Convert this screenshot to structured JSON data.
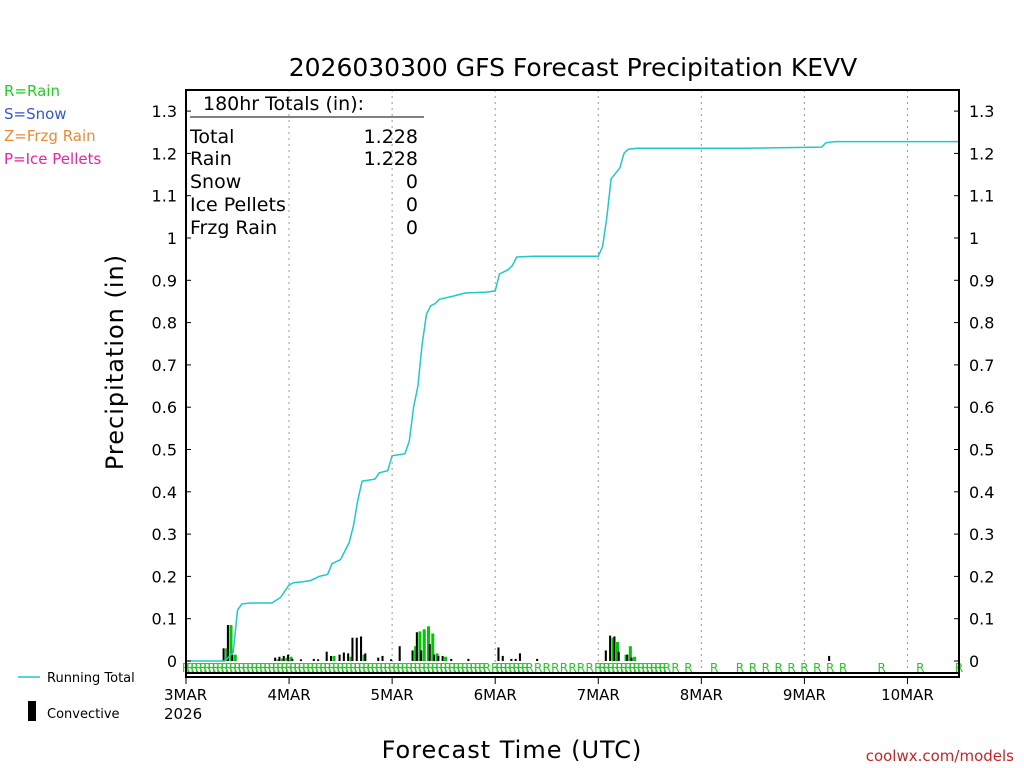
{
  "chart_data": {
    "type": "line",
    "title": "2026030300 GFS Forecast Precipitation KEVV",
    "xlabel": "Forecast Time (UTC)",
    "ylabel": "Precipitation (in)",
    "ylim": [
      0,
      1.35
    ],
    "xlim_hours": [
      0,
      180
    ],
    "y_ticks": [
      0,
      0.1,
      0.2,
      0.3,
      0.4,
      0.5,
      0.6,
      0.7,
      0.8,
      0.9,
      1,
      1.1,
      1.2,
      1.3
    ],
    "y_tick_labels": [
      "0",
      "0.1",
      "0.2",
      "0.3",
      "0.4",
      "0.5",
      "0.6",
      "0.7",
      "0.8",
      "0.9",
      "1",
      "1.1",
      "1.2",
      "1.3"
    ],
    "x_ticks": [
      {
        "hour": 0,
        "label": "3MAR",
        "sublabel": "2026"
      },
      {
        "hour": 24,
        "label": "4MAR"
      },
      {
        "hour": 48,
        "label": "5MAR"
      },
      {
        "hour": 72,
        "label": "6MAR"
      },
      {
        "hour": 96,
        "label": "7MAR"
      },
      {
        "hour": 120,
        "label": "8MAR"
      },
      {
        "hour": 144,
        "label": "9MAR"
      },
      {
        "hour": 168,
        "label": "10MAR"
      }
    ],
    "grid_hours": [
      24,
      48,
      72,
      96,
      120,
      144,
      168
    ],
    "totals_box": {
      "heading": "180hr Totals (in):",
      "rows": [
        {
          "label": "Total",
          "value": "1.228"
        },
        {
          "label": "Rain",
          "value": "1.228"
        },
        {
          "label": "Snow",
          "value": "0"
        },
        {
          "label": "Ice Pellets",
          "value": "0"
        },
        {
          "label": "Frzg Rain",
          "value": "0"
        }
      ]
    },
    "type_legend": [
      {
        "label": "R=Rain",
        "color": "#22cc22"
      },
      {
        "label": "S=Snow",
        "color": "#3355dd"
      },
      {
        "label": "Z=Frzg Rain",
        "color": "#ee8833"
      },
      {
        "label": "P=Ice Pellets",
        "color": "#ee2299"
      }
    ],
    "series": [
      {
        "name": "Running Total",
        "color": "#20c8c8",
        "points": [
          [
            0,
            0
          ],
          [
            9,
            0
          ],
          [
            11,
            0.02
          ],
          [
            12,
            0.12
          ],
          [
            13,
            0.135
          ],
          [
            15,
            0.137
          ],
          [
            20,
            0.137
          ],
          [
            22,
            0.15
          ],
          [
            23,
            0.165
          ],
          [
            24,
            0.18
          ],
          [
            25,
            0.185
          ],
          [
            27,
            0.187
          ],
          [
            29,
            0.19
          ],
          [
            31,
            0.2
          ],
          [
            33,
            0.205
          ],
          [
            34,
            0.23
          ],
          [
            36,
            0.24
          ],
          [
            37,
            0.26
          ],
          [
            38,
            0.28
          ],
          [
            39,
            0.32
          ],
          [
            40,
            0.38
          ],
          [
            41,
            0.425
          ],
          [
            44,
            0.43
          ],
          [
            45,
            0.445
          ],
          [
            47,
            0.45
          ],
          [
            48,
            0.485
          ],
          [
            51,
            0.49
          ],
          [
            52,
            0.52
          ],
          [
            53,
            0.6
          ],
          [
            54,
            0.65
          ],
          [
            55,
            0.75
          ],
          [
            56,
            0.82
          ],
          [
            57,
            0.84
          ],
          [
            58,
            0.845
          ],
          [
            59,
            0.855
          ],
          [
            62,
            0.862
          ],
          [
            65,
            0.87
          ],
          [
            70,
            0.872
          ],
          [
            72,
            0.875
          ],
          [
            73,
            0.915
          ],
          [
            75,
            0.925
          ],
          [
            76,
            0.935
          ],
          [
            77,
            0.955
          ],
          [
            81,
            0.957
          ],
          [
            91,
            0.957
          ],
          [
            96,
            0.957
          ],
          [
            97,
            0.98
          ],
          [
            98,
            1.05
          ],
          [
            99,
            1.14
          ],
          [
            101,
            1.165
          ],
          [
            102,
            1.2
          ],
          [
            103,
            1.21
          ],
          [
            105,
            1.212
          ],
          [
            130,
            1.212
          ],
          [
            148,
            1.215
          ],
          [
            149,
            1.225
          ],
          [
            151,
            1.228
          ],
          [
            180,
            1.228
          ]
        ]
      },
      {
        "name": "Convective",
        "color": "#000000",
        "bars": [
          [
            9,
            0.03
          ],
          [
            10,
            0.085
          ],
          [
            11,
            0.015
          ],
          [
            21,
            0.008
          ],
          [
            22,
            0.01
          ],
          [
            23,
            0.012
          ],
          [
            24,
            0.015
          ],
          [
            25,
            0.005
          ],
          [
            27,
            0.004
          ],
          [
            30,
            0.005
          ],
          [
            31,
            0.004
          ],
          [
            33,
            0.022
          ],
          [
            34,
            0.012
          ],
          [
            36,
            0.015
          ],
          [
            37,
            0.02
          ],
          [
            38,
            0.018
          ],
          [
            39,
            0.055
          ],
          [
            40,
            0.055
          ],
          [
            41,
            0.058
          ],
          [
            42,
            0.018
          ],
          [
            45,
            0.008
          ],
          [
            46,
            0.012
          ],
          [
            48,
            0.004
          ],
          [
            50,
            0.035
          ],
          [
            53,
            0.025
          ],
          [
            54,
            0.068
          ],
          [
            55,
            0.025
          ],
          [
            57,
            0.04
          ],
          [
            58,
            0.015
          ],
          [
            59,
            0.012
          ],
          [
            60,
            0.012
          ],
          [
            62,
            0.005
          ],
          [
            66,
            0.005
          ],
          [
            73,
            0.032
          ],
          [
            74,
            0.012
          ],
          [
            76,
            0.005
          ],
          [
            77,
            0.005
          ],
          [
            78,
            0.018
          ],
          [
            82,
            0.005
          ],
          [
            98,
            0.025
          ],
          [
            99,
            0.06
          ],
          [
            100,
            0.058
          ],
          [
            101,
            0.022
          ],
          [
            103,
            0.015
          ],
          [
            104,
            0.008
          ],
          [
            150,
            0.012
          ]
        ]
      },
      {
        "name": "Rain",
        "color": "#00c800",
        "bars": [
          [
            9,
            0.03
          ],
          [
            10,
            0.085
          ],
          [
            11,
            0.015
          ],
          [
            21,
            0.004
          ],
          [
            22,
            0.006
          ],
          [
            23,
            0.008
          ],
          [
            24,
            0.01
          ],
          [
            34,
            0.012
          ],
          [
            38,
            0.01
          ],
          [
            41,
            0.015
          ],
          [
            53,
            0.035
          ],
          [
            54,
            0.07
          ],
          [
            55,
            0.075
          ],
          [
            56,
            0.082
          ],
          [
            57,
            0.065
          ],
          [
            58,
            0.018
          ],
          [
            60,
            0.01
          ],
          [
            99,
            0.055
          ],
          [
            100,
            0.045
          ],
          [
            102,
            0.015
          ],
          [
            103,
            0.035
          ],
          [
            104,
            0.01
          ]
        ]
      }
    ],
    "precip_type_markers": {
      "symbol": "R",
      "color": "#22cc22",
      "hours": [
        0,
        1,
        2,
        3,
        4,
        5,
        6,
        7,
        8,
        9,
        10,
        11,
        12,
        13,
        14,
        15,
        16,
        17,
        18,
        19,
        20,
        21,
        22,
        23,
        24,
        25,
        26,
        27,
        28,
        29,
        30,
        31,
        32,
        33,
        34,
        35,
        36,
        37,
        38,
        39,
        40,
        41,
        42,
        43,
        44,
        45,
        46,
        47,
        48,
        49,
        50,
        51,
        52,
        53,
        54,
        55,
        56,
        57,
        58,
        59,
        60,
        61,
        62,
        63,
        64,
        65,
        66,
        67,
        68,
        69,
        70,
        72,
        73,
        74,
        75,
        76,
        77,
        78,
        79,
        80,
        82,
        84,
        86,
        88,
        90,
        92,
        94,
        96,
        97,
        98,
        99,
        100,
        101,
        102,
        103,
        104,
        105,
        106,
        107,
        108,
        109,
        110,
        111,
        112,
        114,
        117,
        123,
        129,
        132,
        135,
        138,
        141,
        144,
        147,
        150,
        153,
        162,
        171,
        180
      ]
    },
    "legend": [
      {
        "label": "Running Total",
        "kind": "line",
        "color": "#20c8c8"
      },
      {
        "label": "Convective",
        "kind": "bar",
        "color": "#000000"
      }
    ],
    "credit": "coolwx.com/models"
  }
}
